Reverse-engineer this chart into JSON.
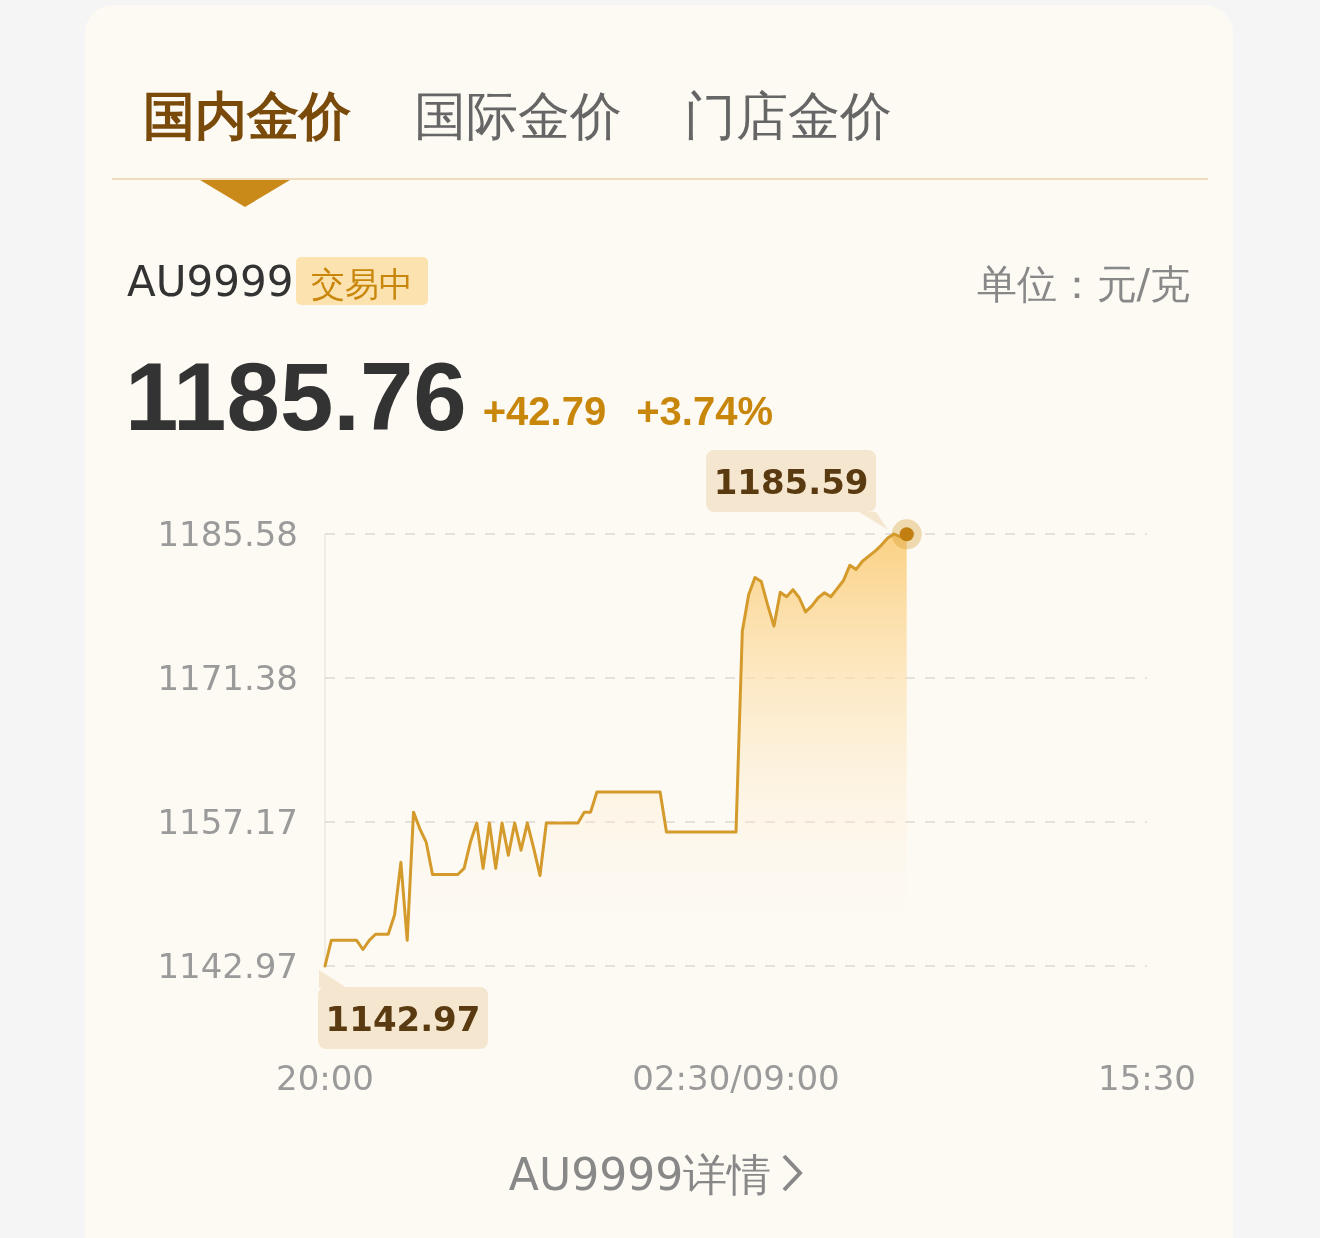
{
  "chart_data": {
    "type": "area",
    "title": "AU9999",
    "categories": [
      "20:00",
      null,
      null,
      null,
      null,
      null,
      null,
      null,
      null,
      null,
      null,
      null,
      null,
      null,
      null,
      null,
      null,
      null,
      null,
      null,
      null,
      null,
      null,
      null,
      null,
      null,
      null,
      null,
      null,
      null,
      null,
      null,
      null,
      null,
      null,
      null,
      null,
      null,
      null,
      null,
      null,
      null,
      null,
      null,
      null,
      null,
      null,
      null,
      null,
      null,
      null,
      null,
      null,
      null,
      null,
      null,
      null,
      null,
      null,
      null,
      null,
      null,
      null,
      null,
      null,
      "02:30/09:00",
      null,
      null,
      null,
      null,
      null,
      null,
      null,
      null,
      null,
      null,
      null,
      null,
      null,
      null,
      null,
      null,
      null,
      null,
      null,
      null,
      null,
      null,
      null,
      null,
      null,
      null,
      null,
      null,
      null,
      null,
      null,
      null,
      null,
      null,
      null,
      null,
      null,
      null,
      null,
      null,
      null,
      null,
      null,
      null,
      null,
      null,
      null,
      null,
      null,
      null,
      null,
      null,
      null,
      null,
      null,
      null,
      null,
      null,
      null,
      null,
      null,
      null,
      null,
      null,
      "15:30"
    ],
    "series": [
      {
        "color": "#d49b2c",
        "values": [
          1142.97,
          1145.5,
          1145.5,
          1145.5,
          1145.5,
          1145.5,
          1144.6,
          1145.5,
          1146.1,
          1146.1,
          1146.1,
          1148.0,
          1153.2,
          1145.5,
          1158.15,
          1156.5,
          1155.2,
          1152.0,
          1152.0,
          1152.0,
          1152.0,
          1152.0,
          1152.6,
          1155.2,
          1157.07,
          1152.6,
          1157.07,
          1152.6,
          1157.07,
          1153.9,
          1157.07,
          1154.4,
          1157.07,
          1154.6,
          1151.9,
          1157.07,
          1157.07,
          1157.07,
          1157.07,
          1157.07,
          1157.07,
          1158.15,
          1158.15,
          1160.13,
          1160.13,
          1160.13,
          1160.13,
          1160.13,
          1160.13,
          1160.13,
          1160.13,
          1160.13,
          1160.13,
          1160.13,
          1156.18,
          1156.18,
          1156.18,
          1156.18,
          1156.18,
          1156.18,
          1156.18,
          1156.18,
          1156.18,
          1156.18,
          1156.18,
          1156.18,
          1176.0,
          1179.6,
          1181.3,
          1180.9,
          1178.6,
          1176.5,
          1179.85,
          1179.4,
          1180.1,
          1179.3,
          1177.9,
          1178.5,
          1179.3,
          1179.8,
          1179.4,
          1180.2,
          1181.0,
          1182.5,
          1182.1,
          1182.9,
          1183.4,
          1183.9,
          1184.5,
          1185.2,
          1185.59,
          1185.3,
          1185.56,
          null,
          null,
          null,
          null,
          null,
          null,
          null,
          null,
          null,
          null,
          null,
          null,
          null,
          null,
          null,
          null,
          null,
          null,
          null,
          null,
          null,
          null,
          null,
          null,
          null,
          null,
          null,
          null,
          null,
          null,
          null,
          null,
          null,
          null,
          null,
          null,
          null,
          null
        ]
      }
    ],
    "value_labels": [
      "1142.97",
      null,
      null,
      null,
      null,
      null,
      null,
      null,
      null,
      null,
      null,
      null,
      null,
      null,
      null,
      null,
      null,
      null,
      null,
      null,
      null,
      null,
      null,
      null,
      null,
      null,
      null,
      null,
      null,
      null,
      null,
      null,
      null,
      null,
      null,
      null,
      null,
      null,
      null,
      null,
      null,
      null,
      null,
      null,
      null,
      null,
      null,
      null,
      null,
      null,
      null,
      null,
      null,
      null,
      null,
      null,
      null,
      null,
      null,
      null,
      null,
      null,
      null,
      null,
      null,
      null,
      null,
      null,
      null,
      null,
      null,
      null,
      null,
      null,
      null,
      null,
      null,
      null,
      null,
      null,
      null,
      null,
      null,
      null,
      null,
      null,
      null,
      null,
      null,
      null,
      "1185.59",
      null,
      null,
      null,
      null,
      null,
      null,
      null,
      null,
      null,
      null,
      null,
      null,
      null,
      null,
      null,
      null,
      null,
      null,
      null,
      null,
      null,
      null,
      null,
      null,
      null,
      null,
      null,
      null,
      null,
      null,
      null,
      null,
      null,
      null,
      null,
      null,
      null,
      null,
      null,
      null
    ],
    "ylim": [
      1142.97,
      1185.59
    ],
    "yticks": [
      1142.97,
      1157.17,
      1171.38,
      1185.58
    ],
    "grid": "y",
    "annotations": [
      "国内金价",
      "国际金价",
      "门店金价",
      "交易中",
      "单位：元/克",
      "1185.76",
      "+42.79",
      "+3.74%",
      "AU9999详情"
    ]
  }
}
